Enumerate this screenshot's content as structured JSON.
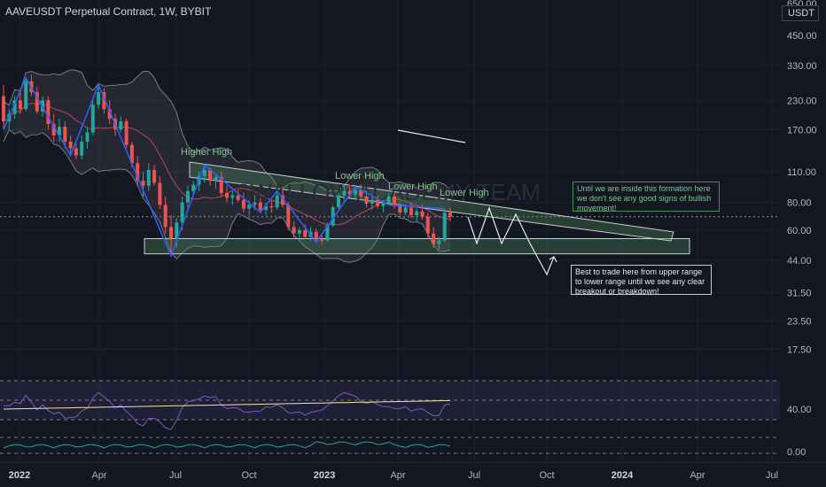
{
  "header": {
    "title": "AAVEUSDT Perpetual Contract, 1W, BYBIT",
    "currency": "USDT"
  },
  "watermark": "SWALLOW ACADEMY TEAM",
  "chart_data": {
    "type": "candlestick",
    "title": "AAVEUSDT Perpetual Contract, 1W, BYBIT",
    "y_scale": "log",
    "y_ticks": [
      650,
      450,
      330,
      230,
      170,
      110,
      80,
      60,
      44,
      31.5,
      23.5,
      17.5
    ],
    "y_tick_labels": [
      "650.00",
      "450.00",
      "330.00",
      "230.00",
      "170.00",
      "110.00",
      "80.00",
      "60.00",
      "44.00",
      "31.50",
      "23.50",
      "17.50"
    ],
    "x_tick_labels": [
      "2022",
      "Apr",
      "Jul",
      "Oct",
      "2023",
      "Apr",
      "Jul",
      "Oct",
      "2024",
      "Apr",
      "Jul"
    ],
    "x_tick_bold": [
      true,
      false,
      false,
      false,
      true,
      false,
      false,
      false,
      true,
      false,
      false
    ],
    "current_price_line": 69,
    "annotations": [
      {
        "text": "Higher High",
        "color": "#7ec98d"
      },
      {
        "text": "Lower High",
        "color": "#7ec98d"
      },
      {
        "text": "Lower High",
        "color": "#7ec98d"
      },
      {
        "text": "Lower High",
        "color": "#7ec98d"
      }
    ],
    "boxes": {
      "support_range": {
        "low": 47,
        "high": 55,
        "color": "#4c8a5a"
      },
      "descending_resistance": {
        "color": "#4c8a5a"
      }
    },
    "candles": [
      {
        "o": 240,
        "h": 270,
        "l": 170,
        "c": 185
      },
      {
        "o": 185,
        "h": 210,
        "l": 170,
        "c": 200
      },
      {
        "o": 200,
        "h": 240,
        "l": 190,
        "c": 230
      },
      {
        "o": 230,
        "h": 260,
        "l": 200,
        "c": 210
      },
      {
        "o": 210,
        "h": 290,
        "l": 205,
        "c": 280
      },
      {
        "o": 280,
        "h": 300,
        "l": 240,
        "c": 250
      },
      {
        "o": 250,
        "h": 265,
        "l": 200,
        "c": 205
      },
      {
        "o": 205,
        "h": 240,
        "l": 195,
        "c": 230
      },
      {
        "o": 230,
        "h": 240,
        "l": 170,
        "c": 180
      },
      {
        "o": 180,
        "h": 200,
        "l": 150,
        "c": 160
      },
      {
        "o": 160,
        "h": 190,
        "l": 150,
        "c": 175
      },
      {
        "o": 175,
        "h": 185,
        "l": 140,
        "c": 150
      },
      {
        "o": 150,
        "h": 160,
        "l": 130,
        "c": 140
      },
      {
        "o": 140,
        "h": 150,
        "l": 125,
        "c": 130
      },
      {
        "o": 130,
        "h": 160,
        "l": 125,
        "c": 150
      },
      {
        "o": 150,
        "h": 175,
        "l": 140,
        "c": 165
      },
      {
        "o": 165,
        "h": 230,
        "l": 160,
        "c": 220
      },
      {
        "o": 220,
        "h": 270,
        "l": 210,
        "c": 250
      },
      {
        "o": 250,
        "h": 260,
        "l": 200,
        "c": 210
      },
      {
        "o": 210,
        "h": 230,
        "l": 180,
        "c": 190
      },
      {
        "o": 190,
        "h": 200,
        "l": 160,
        "c": 170
      },
      {
        "o": 170,
        "h": 195,
        "l": 165,
        "c": 185
      },
      {
        "o": 185,
        "h": 190,
        "l": 140,
        "c": 145
      },
      {
        "o": 145,
        "h": 150,
        "l": 115,
        "c": 120
      },
      {
        "o": 120,
        "h": 130,
        "l": 95,
        "c": 100
      },
      {
        "o": 100,
        "h": 110,
        "l": 85,
        "c": 95
      },
      {
        "o": 95,
        "h": 120,
        "l": 90,
        "c": 112
      },
      {
        "o": 112,
        "h": 118,
        "l": 95,
        "c": 98
      },
      {
        "o": 98,
        "h": 105,
        "l": 75,
        "c": 78
      },
      {
        "o": 78,
        "h": 85,
        "l": 58,
        "c": 62
      },
      {
        "o": 62,
        "h": 70,
        "l": 46,
        "c": 55
      },
      {
        "o": 55,
        "h": 68,
        "l": 50,
        "c": 65
      },
      {
        "o": 65,
        "h": 85,
        "l": 60,
        "c": 80
      },
      {
        "o": 80,
        "h": 95,
        "l": 75,
        "c": 90
      },
      {
        "o": 90,
        "h": 100,
        "l": 85,
        "c": 96
      },
      {
        "o": 96,
        "h": 110,
        "l": 90,
        "c": 105
      },
      {
        "o": 105,
        "h": 118,
        "l": 98,
        "c": 112
      },
      {
        "o": 112,
        "h": 115,
        "l": 95,
        "c": 100
      },
      {
        "o": 100,
        "h": 108,
        "l": 92,
        "c": 104
      },
      {
        "o": 104,
        "h": 110,
        "l": 85,
        "c": 88
      },
      {
        "o": 88,
        "h": 95,
        "l": 80,
        "c": 84
      },
      {
        "o": 84,
        "h": 90,
        "l": 78,
        "c": 86
      },
      {
        "o": 86,
        "h": 92,
        "l": 80,
        "c": 82
      },
      {
        "o": 82,
        "h": 88,
        "l": 72,
        "c": 75
      },
      {
        "o": 75,
        "h": 82,
        "l": 70,
        "c": 78
      },
      {
        "o": 78,
        "h": 86,
        "l": 74,
        "c": 80
      },
      {
        "o": 80,
        "h": 84,
        "l": 72,
        "c": 74
      },
      {
        "o": 74,
        "h": 80,
        "l": 70,
        "c": 77
      },
      {
        "o": 77,
        "h": 82,
        "l": 72,
        "c": 76
      },
      {
        "o": 76,
        "h": 90,
        "l": 74,
        "c": 86
      },
      {
        "o": 86,
        "h": 92,
        "l": 76,
        "c": 78
      },
      {
        "o": 78,
        "h": 80,
        "l": 60,
        "c": 62
      },
      {
        "o": 62,
        "h": 66,
        "l": 55,
        "c": 58
      },
      {
        "o": 58,
        "h": 62,
        "l": 54,
        "c": 60
      },
      {
        "o": 60,
        "h": 64,
        "l": 55,
        "c": 56
      },
      {
        "o": 56,
        "h": 62,
        "l": 54,
        "c": 59
      },
      {
        "o": 59,
        "h": 61,
        "l": 53,
        "c": 55
      },
      {
        "o": 55,
        "h": 58,
        "l": 52,
        "c": 54
      },
      {
        "o": 54,
        "h": 65,
        "l": 53,
        "c": 63
      },
      {
        "o": 63,
        "h": 78,
        "l": 62,
        "c": 76
      },
      {
        "o": 76,
        "h": 88,
        "l": 74,
        "c": 86
      },
      {
        "o": 86,
        "h": 95,
        "l": 80,
        "c": 90
      },
      {
        "o": 90,
        "h": 96,
        "l": 84,
        "c": 87
      },
      {
        "o": 87,
        "h": 94,
        "l": 82,
        "c": 91
      },
      {
        "o": 91,
        "h": 96,
        "l": 83,
        "c": 85
      },
      {
        "o": 85,
        "h": 90,
        "l": 76,
        "c": 79
      },
      {
        "o": 79,
        "h": 85,
        "l": 74,
        "c": 82
      },
      {
        "o": 82,
        "h": 86,
        "l": 75,
        "c": 77
      },
      {
        "o": 77,
        "h": 82,
        "l": 72,
        "c": 80
      },
      {
        "o": 80,
        "h": 88,
        "l": 78,
        "c": 85
      },
      {
        "o": 85,
        "h": 90,
        "l": 75,
        "c": 77
      },
      {
        "o": 77,
        "h": 80,
        "l": 70,
        "c": 72
      },
      {
        "o": 72,
        "h": 78,
        "l": 70,
        "c": 76
      },
      {
        "o": 76,
        "h": 80,
        "l": 68,
        "c": 70
      },
      {
        "o": 70,
        "h": 75,
        "l": 66,
        "c": 73
      },
      {
        "o": 73,
        "h": 78,
        "l": 67,
        "c": 69
      },
      {
        "o": 69,
        "h": 72,
        "l": 55,
        "c": 58
      },
      {
        "o": 58,
        "h": 62,
        "l": 50,
        "c": 52
      },
      {
        "o": 52,
        "h": 56,
        "l": 49,
        "c": 54
      },
      {
        "o": 54,
        "h": 75,
        "l": 53,
        "c": 72
      },
      {
        "o": 72,
        "h": 76,
        "l": 66,
        "c": 69
      }
    ]
  },
  "notes": {
    "green_note": "Until we are inside this formation here we don't see any good signs of bullish movement!",
    "white_note": "Best to trade here from upper range to lower range until we see any clear breakout or breakdown!"
  },
  "indicators": {
    "rsi_tick": "40.00",
    "macd_tick": "0.00"
  },
  "colors": {
    "bull": "#26a69a",
    "bear": "#ef5350",
    "background": "#131722",
    "grid": "#1e222d",
    "band": "#787b86",
    "ma": "#b04a5e",
    "swing": "#2962ff"
  }
}
